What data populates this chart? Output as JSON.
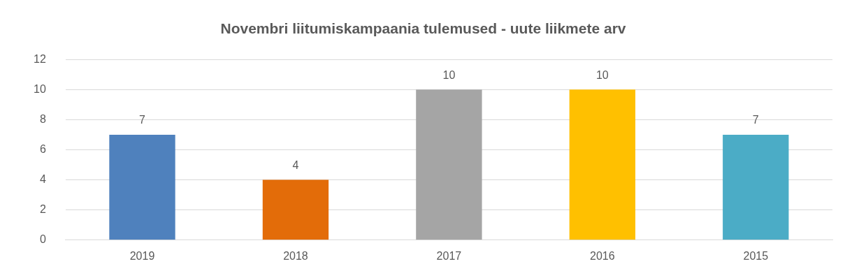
{
  "chart_data": {
    "type": "bar",
    "title": "Novembri liitumiskampaania tulemused - uute liikmete arv",
    "categories": [
      "2019",
      "2018",
      "2017",
      "2016",
      "2015"
    ],
    "values": [
      7,
      4,
      10,
      10,
      7
    ],
    "colors": [
      "#4f81bd",
      "#e36c09",
      "#a5a5a5",
      "#ffc000",
      "#4bacc6"
    ],
    "ylim": [
      0,
      12
    ],
    "yticks": [
      0,
      2,
      4,
      6,
      8,
      10,
      12
    ],
    "grid": "y",
    "legend": false,
    "data_labels": true
  }
}
